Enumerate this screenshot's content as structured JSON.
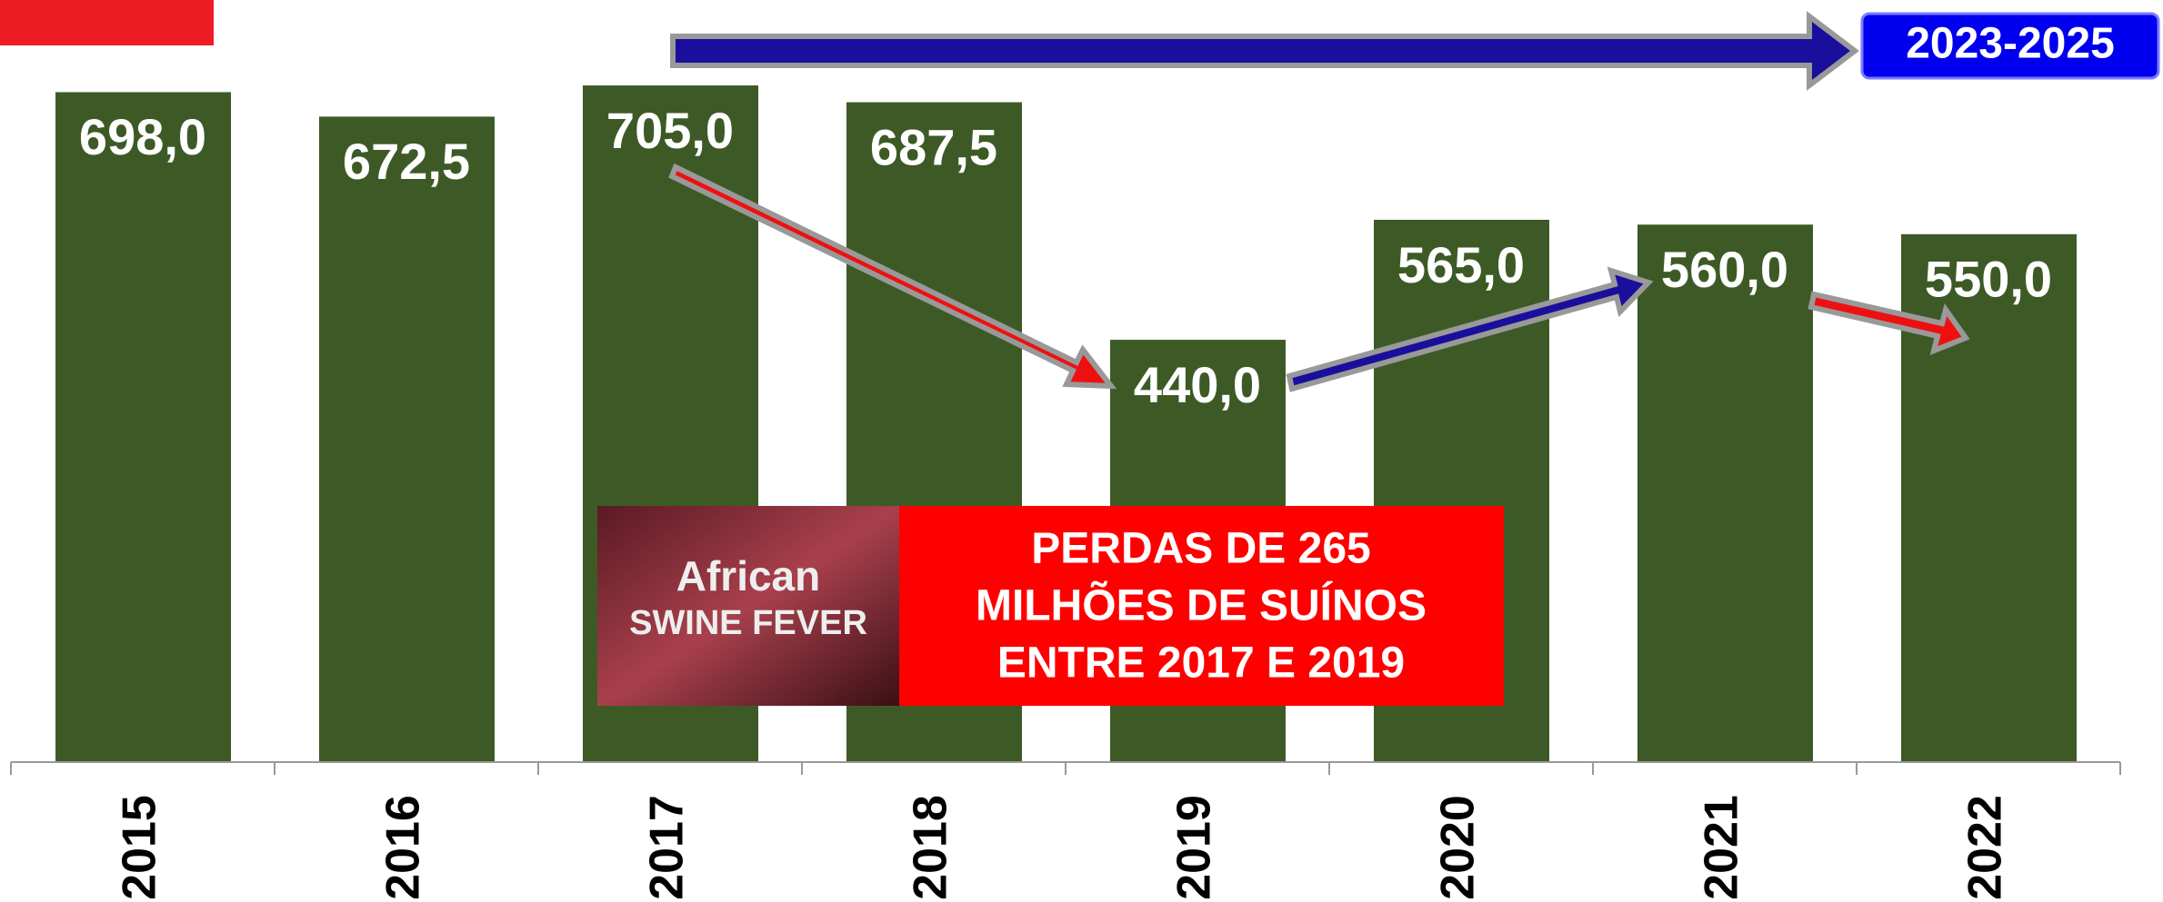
{
  "chart_data": {
    "type": "bar",
    "categories": [
      "2015",
      "2016",
      "2017",
      "2018",
      "2019",
      "2020",
      "2021",
      "2022"
    ],
    "values": [
      698.0,
      672.5,
      705.0,
      687.5,
      440.0,
      565.0,
      560.0,
      550.0
    ],
    "value_labels": [
      "698,0",
      "672,5",
      "705,0",
      "687,5",
      "440,0",
      "565,0",
      "560,0",
      "550,0"
    ],
    "color": "#3d5a26",
    "ylim": [
      0,
      794
    ],
    "annotations": {
      "period": "2023-2025",
      "loss": [
        "PERDAS DE 265",
        "MILHÕES DE SUÍNOS",
        "ENTRE 2017 E 2019"
      ],
      "image_text": [
        "African",
        "SWINE FEVER"
      ]
    }
  }
}
